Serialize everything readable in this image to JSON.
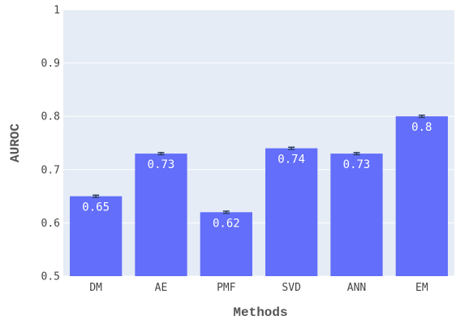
{
  "chart_data": {
    "type": "bar",
    "categories": [
      "DM",
      "AE",
      "PMF",
      "SVD",
      "ANN",
      "EM"
    ],
    "values": [
      0.65,
      0.73,
      0.62,
      0.74,
      0.73,
      0.8
    ],
    "value_labels": [
      "0.65",
      "0.73",
      "0.62",
      "0.74",
      "0.73",
      "0.8"
    ],
    "error": [
      0.002,
      0.002,
      0.002,
      0.002,
      0.002,
      0.002
    ],
    "xlabel": "Methods",
    "ylabel": "AUROC",
    "ylim": [
      0.5,
      1
    ],
    "yticks": [
      0.5,
      0.6,
      0.7,
      0.8,
      0.9,
      1
    ],
    "ytick_labels": [
      "0.5",
      "0.6",
      "0.7",
      "0.8",
      "0.9",
      "1"
    ],
    "grid": true,
    "colors": {
      "bar": "#636efa",
      "plot_background": "#e5ecf6",
      "grid": "#ffffff",
      "error_bar": "#2a3f5f"
    }
  }
}
